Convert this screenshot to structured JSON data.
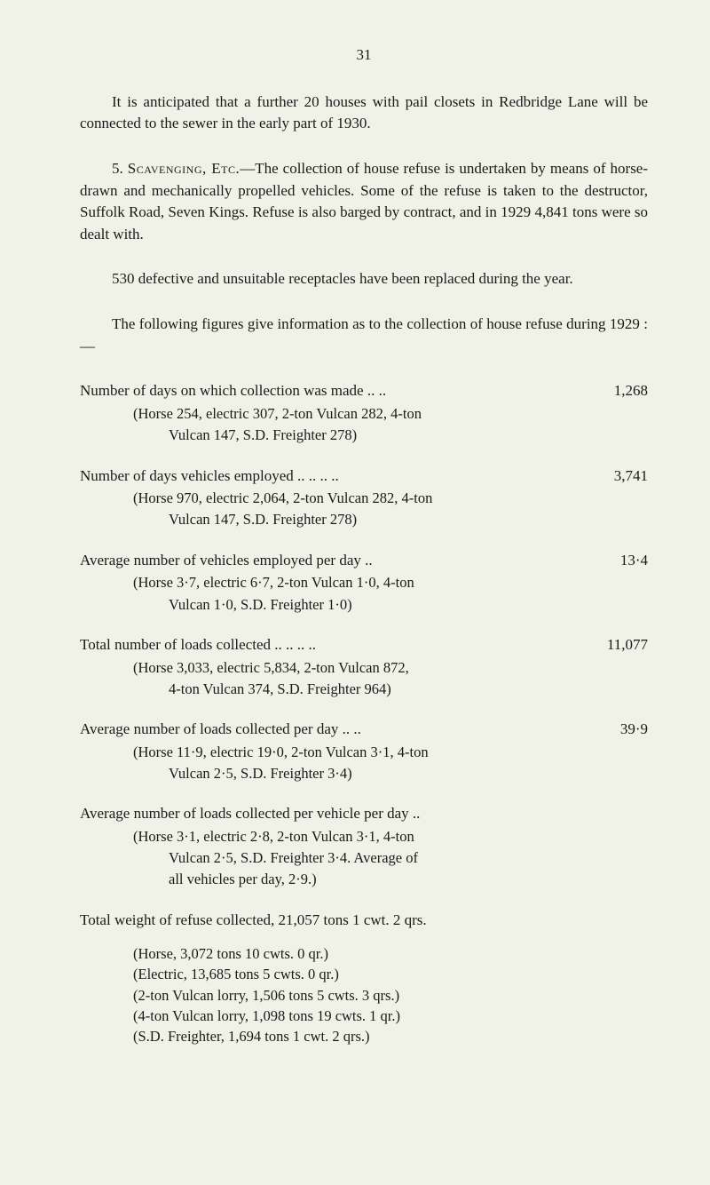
{
  "page_number": "31",
  "para1": "It is anticipated that a further 20 houses with pail closets in Redbridge Lane will be connected to the sewer in the early part of 1930.",
  "para2_label": "Scavenging, Etc.",
  "para2_prefix": "5.   ",
  "para2_rest": "—The collection of house refuse is under­taken by means of horse-drawn and mechanically propelled vehicles. Some of the refuse is taken to the destructor, Suffolk Road, Seven Kings. Refuse is also barged by contract, and in 1929 4,841 tons were so dealt with.",
  "para3": "530 defective and unsuitable receptacles have been replaced during the year.",
  "para4": "The following figures give information as to the collection of house refuse during 1929 :—",
  "items": [
    {
      "label": "Number of days on which collection was made   ..     ..",
      "value": "1,268",
      "detail": "(Horse 254, electric 307, 2-ton Vulcan 282, 4-ton",
      "detail2": "Vulcan 147, S.D. Freighter 278)"
    },
    {
      "label": "Number of days vehicles employed  ..     ..     ..     ..",
      "value": "3,741",
      "detail": "(Horse 970, electric 2,064, 2-ton Vulcan 282, 4-ton",
      "detail2": "Vulcan 147, S.D. Freighter 278)"
    },
    {
      "label": "Average number of vehicles employed per day     ..",
      "value": "13·4",
      "detail": "(Horse 3·7, electric 6·7, 2-ton Vulcan 1·0, 4-ton",
      "detail2": "Vulcan 1·0, S.D. Freighter 1·0)"
    },
    {
      "label": "Total number of loads collected        ..     ..     ..     ..",
      "value": "11,077",
      "detail": "(Horse 3,033, electric 5,834, 2-ton Vulcan 872,",
      "detail2": "4-ton Vulcan 374, S.D. Freighter 964)"
    },
    {
      "label": "Average number of loads collected per day        ..     ..",
      "value": "39·9",
      "detail": "(Horse 11·9, electric 19·0, 2-ton Vulcan 3·1, 4-ton",
      "detail2": "Vulcan 2·5, S.D. Freighter 3·4)"
    },
    {
      "label": "Average number of loads collected per vehicle per day   ..",
      "value": "",
      "detail": "(Horse 3·1, electric 2·8, 2-ton Vulcan 3·1, 4-ton",
      "detail2": "Vulcan 2·5, S.D. Freighter 3·4.  Average of",
      "detail3": "all vehicles per day, 2·9.)"
    }
  ],
  "total_weight_label": "Total weight of refuse collected, 21,057 tons 1 cwt. 2 qrs.",
  "total_weight_details": [
    "(Horse, 3,072 tons 10 cwts. 0 qr.)",
    "(Electric, 13,685 tons 5 cwts. 0 qr.)",
    "(2-ton Vulcan lorry, 1,506 tons 5 cwts. 3 qrs.)",
    "(4-ton Vulcan lorry, 1,098 tons 19 cwts. 1 qr.)",
    "(S.D. Freighter, 1,694 tons 1 cwt. 2 qrs.)"
  ]
}
